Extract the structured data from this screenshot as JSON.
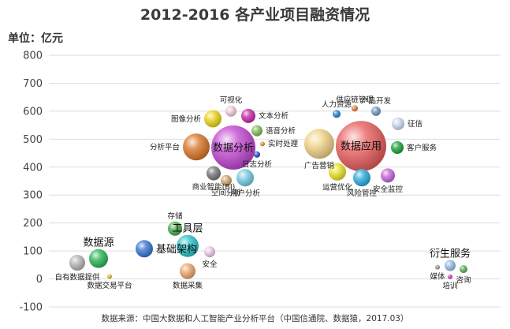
{
  "chart_data": {
    "type": "bubble",
    "title": "2012-2016 各产业项目融资情况",
    "ylabel": "单位：亿元",
    "ylim": [
      -100,
      800
    ],
    "yticks": [
      -100,
      0,
      100,
      200,
      300,
      400,
      500,
      600,
      700,
      800
    ],
    "grid": "horizontal",
    "source": "数据来源：中国大数据和人工智能产业分析平台（中国信通院、数据猿，2017.03）",
    "bubbles": [
      {
        "label": "数据源",
        "big": true,
        "x": 125,
        "y": 73,
        "r": 12,
        "color": "#22b14c",
        "label_pos": "above"
      },
      {
        "label": "自有数据提供",
        "x": 98,
        "y": 58,
        "r": 10,
        "color": "#b0b0b0",
        "label_pos": "below"
      },
      {
        "label": "数据交易平台",
        "x": 139,
        "y": 9,
        "r": 3,
        "color": "#d8b020",
        "label_pos": "below"
      },
      {
        "label": "基础架构",
        "big": true,
        "x": 183,
        "y": 108,
        "r": 11,
        "color": "#2f6fd0",
        "label_pos": "right"
      },
      {
        "label": "存储",
        "x": 222,
        "y": 180,
        "r": 9,
        "color": "#3da63d",
        "label_pos": "above"
      },
      {
        "label": "工具层",
        "big": true,
        "x": 238,
        "y": 118,
        "r": 14,
        "color": "#20c0c8",
        "label_pos": "above"
      },
      {
        "label": "数据采集",
        "x": 238,
        "y": 28,
        "r": 10,
        "color": "#e8a068",
        "label_pos": "below"
      },
      {
        "label": "安全",
        "x": 266,
        "y": 97,
        "r": 7,
        "color": "#e8c8e0",
        "label_pos": "below"
      },
      {
        "label": "数据分析",
        "big": true,
        "x": 296,
        "y": 470,
        "r": 28,
        "color": "#c040d0",
        "label_pos": "center"
      },
      {
        "label": "分析平台",
        "x": 249,
        "y": 472,
        "r": 17,
        "color": "#d87020",
        "label_pos": "left"
      },
      {
        "label": "图像分析",
        "x": 270,
        "y": 573,
        "r": 11,
        "color": "#e8d010",
        "label_pos": "left"
      },
      {
        "label": "可视化",
        "x": 293,
        "y": 600,
        "r": 7,
        "color": "#f0c8d8",
        "label_pos": "above"
      },
      {
        "label": "文本分析",
        "x": 315,
        "y": 583,
        "r": 9,
        "color": "#c020a0",
        "label_pos": "right"
      },
      {
        "label": "语音分析",
        "x": 326,
        "y": 530,
        "r": 7,
        "color": "#78b850",
        "label_pos": "right"
      },
      {
        "label": "实时处理",
        "x": 333,
        "y": 483,
        "r": 3,
        "color": "#e08830",
        "label_pos": "right"
      },
      {
        "label": "日志分析",
        "x": 326,
        "y": 445,
        "r": 4,
        "color": "#1848c0",
        "label_pos": "below"
      },
      {
        "label": "商业智能(BI)",
        "x": 271,
        "y": 378,
        "r": 9,
        "color": "#707070",
        "label_pos": "below"
      },
      {
        "label": "空间分析",
        "x": 287,
        "y": 352,
        "r": 7,
        "color": "#c8a060",
        "label_pos": "below"
      },
      {
        "label": "用户分析",
        "x": 311,
        "y": 362,
        "r": 11,
        "color": "#70c8e0",
        "label_pos": "below"
      },
      {
        "label": "数据应用",
        "big": true,
        "x": 458,
        "y": 475,
        "r": 32,
        "color": "#e85858",
        "label_pos": "center"
      },
      {
        "label": "人力资源",
        "x": 427,
        "y": 590,
        "r": 5,
        "color": "#1878c8",
        "label_pos": "above"
      },
      {
        "label": "供应链管理",
        "x": 450,
        "y": 610,
        "r": 4,
        "color": "#e07038",
        "label_pos": "above"
      },
      {
        "label": "产品开发",
        "x": 477,
        "y": 600,
        "r": 6,
        "color": "#7090c0",
        "label_pos": "above"
      },
      {
        "label": "征信",
        "x": 505,
        "y": 555,
        "r": 8,
        "color": "#c8d8ec",
        "label_pos": "right"
      },
      {
        "label": "客户服务",
        "x": 504,
        "y": 470,
        "r": 8,
        "color": "#10a030",
        "label_pos": "right"
      },
      {
        "label": "广告营销",
        "x": 405,
        "y": 483,
        "r": 19,
        "color": "#f0d080",
        "label_pos": "below"
      },
      {
        "label": "运营优化",
        "x": 428,
        "y": 383,
        "r": 11,
        "color": "#e8e020",
        "label_pos": "below"
      },
      {
        "label": "风险管控",
        "x": 459,
        "y": 362,
        "r": 11,
        "color": "#20a8d8",
        "label_pos": "below"
      },
      {
        "label": "安全监控",
        "x": 492,
        "y": 370,
        "r": 9,
        "color": "#c060d8",
        "label_pos": "below"
      },
      {
        "label": "衍生服务",
        "big": true,
        "x": 571,
        "y": 48,
        "r": 7,
        "color": "#90b8e0",
        "label_pos": "above"
      },
      {
        "label": "媒体",
        "x": 555,
        "y": 42,
        "r": 3,
        "color": "#909090",
        "label_pos": "below"
      },
      {
        "label": "咨询",
        "x": 588,
        "y": 35,
        "r": 5,
        "color": "#50a848",
        "label_pos": "below"
      },
      {
        "label": "培训",
        "x": 571,
        "y": 8,
        "r": 3,
        "color": "#c030c0",
        "label_pos": "below"
      }
    ]
  }
}
